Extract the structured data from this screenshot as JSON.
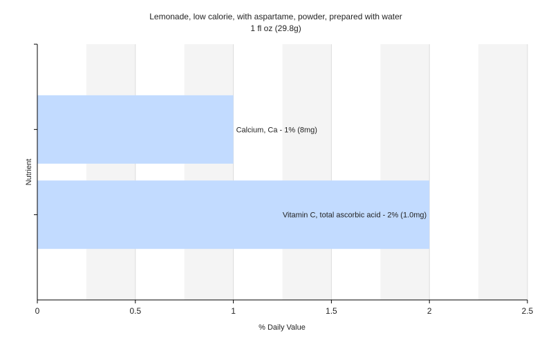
{
  "chart_data": {
    "type": "bar",
    "orientation": "horizontal",
    "title": "Lemonade, low calorie, with aspartame, powder, prepared with water",
    "subtitle": "1 fl oz (29.8g)",
    "xlabel": "% Daily Value",
    "ylabel": "Nutrient",
    "xlim": [
      0,
      2.5
    ],
    "xticks": [
      "0",
      "0.5",
      "1",
      "1.5",
      "2",
      "2.5"
    ],
    "grid": true,
    "legend": "none",
    "bar_color": "#c2dbff",
    "categories": [
      "Calcium, Ca - 1% (8mg)",
      "Vitamin C, total ascorbic acid - 2% (1.0mg)"
    ],
    "values": [
      1,
      2
    ]
  }
}
